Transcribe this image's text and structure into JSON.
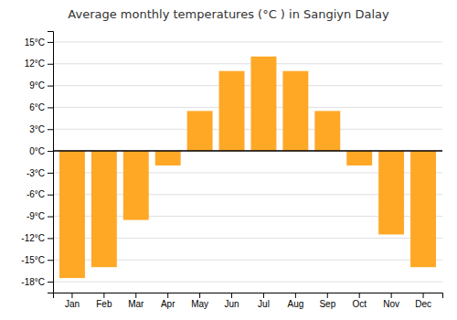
{
  "chart_data": {
    "type": "bar",
    "title": "Average monthly temperatures (°C ) in Sangiyn Dalay",
    "categories": [
      "Jan",
      "Feb",
      "Mar",
      "Apr",
      "May",
      "Jun",
      "Jul",
      "Aug",
      "Sep",
      "Oct",
      "Nov",
      "Dec"
    ],
    "values": [
      -17.5,
      -16.0,
      -9.5,
      -2.0,
      5.5,
      11.0,
      13.0,
      11.0,
      5.5,
      -2.0,
      -11.5,
      -16.0
    ],
    "color": "#FFA826",
    "ylim": [
      -19.5,
      16.5
    ],
    "yticks": [
      {
        "value": -18,
        "label": "-18°C"
      },
      {
        "value": -15,
        "label": "-15°C"
      },
      {
        "value": -12,
        "label": "-12°C"
      },
      {
        "value": -9,
        "label": "-9°C"
      },
      {
        "value": -6,
        "label": "-6°C"
      },
      {
        "value": -3,
        "label": "-3°C"
      },
      {
        "value": 0,
        "label": "0°C"
      },
      {
        "value": 3,
        "label": "3°C"
      },
      {
        "value": 6,
        "label": "6°C"
      },
      {
        "value": 9,
        "label": "9°C"
      },
      {
        "value": 12,
        "label": "12°C"
      },
      {
        "value": 15,
        "label": "15°C"
      }
    ],
    "grid": true
  }
}
